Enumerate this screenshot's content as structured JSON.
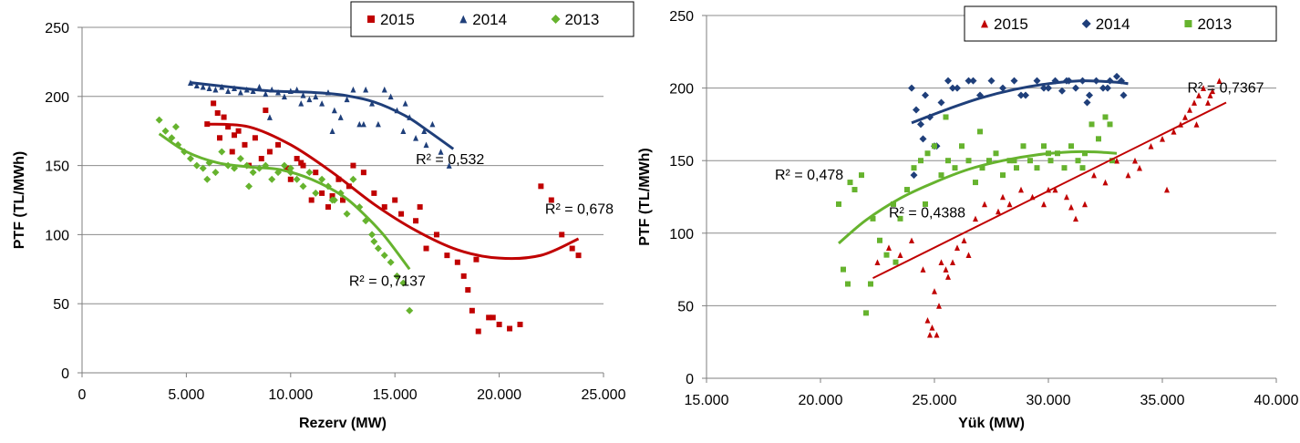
{
  "colors": {
    "2015": "#C00000",
    "2014": "#1F3F7A",
    "2013": "#66B32E",
    "grid": "#8C8C8C",
    "text": "#000000"
  },
  "chart_data": [
    {
      "type": "scatter",
      "xlabel": "Rezerv (MW)",
      "ylabel": "PTF (TL/MWh)",
      "xlim": [
        0,
        25000
      ],
      "ylim": [
        0,
        250
      ],
      "xticks": [
        0,
        5000,
        10000,
        15000,
        20000,
        25000
      ],
      "xtick_labels": [
        "0",
        "5.000",
        "10.000",
        "15.000",
        "20.000",
        "25.000"
      ],
      "yticks": [
        0,
        50,
        100,
        150,
        200,
        250
      ],
      "ytick_labels": [
        "0",
        "50",
        "100",
        "150",
        "200",
        "250"
      ],
      "grid": true,
      "legend_position": "top-right",
      "series": [
        {
          "name": "2015",
          "marker": "square",
          "x": [
            6000,
            6300,
            6600,
            6800,
            7000,
            7200,
            7500,
            7800,
            8000,
            8300,
            8600,
            9000,
            9400,
            9800,
            10000,
            10300,
            10600,
            11000,
            11200,
            11500,
            11800,
            12000,
            12300,
            12500,
            13000,
            13500,
            14000,
            14500,
            15000,
            15300,
            16000,
            16500,
            17000,
            17500,
            18000,
            18300,
            18500,
            18700,
            19000,
            19500,
            20000,
            20500,
            22000,
            23000,
            23800,
            6500,
            7300,
            8800,
            10500,
            12800,
            16200,
            18900,
            19700,
            21000,
            22500,
            23500
          ],
          "y": [
            180,
            195,
            170,
            185,
            178,
            160,
            175,
            165,
            150,
            170,
            155,
            160,
            165,
            148,
            140,
            155,
            150,
            125,
            145,
            130,
            120,
            128,
            140,
            125,
            150,
            145,
            130,
            120,
            125,
            115,
            110,
            90,
            100,
            85,
            80,
            70,
            60,
            45,
            30,
            40,
            35,
            32,
            135,
            100,
            85,
            188,
            172,
            190,
            152,
            135,
            120,
            82,
            40,
            35,
            125,
            90
          ],
          "trend": {
            "type": "poly3",
            "x_range": [
              6000,
              23800
            ],
            "r2_label": "R² = 0,678",
            "points": [
              [
                6000,
                180
              ],
              [
                8000,
                178
              ],
              [
                10000,
                165
              ],
              [
                12000,
                145
              ],
              [
                14000,
                122
              ],
              [
                16000,
                103
              ],
              [
                18000,
                89
              ],
              [
                20000,
                83
              ],
              [
                22000,
                85
              ],
              [
                23800,
                97
              ]
            ]
          }
        },
        {
          "name": "2014",
          "marker": "triangle",
          "x": [
            5200,
            5500,
            5800,
            6100,
            6400,
            6700,
            7000,
            7300,
            7600,
            7900,
            8200,
            8500,
            8800,
            9100,
            9400,
            9700,
            10000,
            10300,
            10600,
            10900,
            11200,
            11500,
            11800,
            12100,
            12400,
            12700,
            13000,
            13300,
            13600,
            13900,
            14200,
            14500,
            14800,
            15100,
            15400,
            15700,
            16000,
            16400,
            16800,
            17200,
            17600,
            9000,
            10500,
            12000,
            13500,
            15500,
            16500
          ],
          "y": [
            210,
            208,
            207,
            206,
            205,
            207,
            204,
            206,
            203,
            205,
            204,
            207,
            202,
            205,
            203,
            200,
            204,
            205,
            201,
            198,
            200,
            195,
            203,
            190,
            185,
            198,
            205,
            180,
            205,
            195,
            180,
            205,
            200,
            190,
            175,
            185,
            170,
            175,
            180,
            160,
            150,
            185,
            195,
            175,
            180,
            195,
            165
          ],
          "trend": {
            "type": "poly3",
            "x_range": [
              5200,
              17800
            ],
            "r2_label": "R² = 0,532",
            "points": [
              [
                5200,
                210
              ],
              [
                7000,
                207
              ],
              [
                9000,
                204
              ],
              [
                11000,
                203
              ],
              [
                12500,
                201
              ],
              [
                14000,
                196
              ],
              [
                15500,
                186
              ],
              [
                16500,
                176
              ],
              [
                17800,
                162
              ]
            ]
          }
        },
        {
          "name": "2013",
          "marker": "diamond",
          "x": [
            3700,
            4000,
            4300,
            4600,
            4900,
            5200,
            5500,
            5800,
            6100,
            6400,
            6700,
            7000,
            7300,
            7600,
            7900,
            8200,
            8500,
            8800,
            9100,
            9400,
            9700,
            10000,
            10300,
            10600,
            10900,
            11200,
            11500,
            11800,
            12100,
            12400,
            12700,
            13000,
            13300,
            13600,
            13900,
            14200,
            14500,
            14800,
            15100,
            15400,
            15700,
            4500,
            6000,
            8000,
            10000,
            12000,
            14000
          ],
          "y": [
            183,
            175,
            170,
            165,
            160,
            155,
            150,
            148,
            152,
            145,
            160,
            150,
            148,
            155,
            150,
            145,
            148,
            150,
            140,
            145,
            150,
            148,
            140,
            135,
            145,
            130,
            140,
            135,
            125,
            130,
            115,
            140,
            120,
            110,
            100,
            90,
            85,
            80,
            70,
            65,
            45,
            178,
            140,
            135,
            145,
            125,
            95
          ],
          "trend": {
            "type": "poly3",
            "x_range": [
              3700,
              15700
            ],
            "r2_label": "R² = 0,7137",
            "points": [
              [
                3700,
                173
              ],
              [
                5000,
                160
              ],
              [
                6500,
                152
              ],
              [
                8000,
                149
              ],
              [
                9500,
                147
              ],
              [
                11000,
                140
              ],
              [
                12500,
                128
              ],
              [
                13500,
                115
              ],
              [
                14500,
                99
              ],
              [
                15700,
                75
              ]
            ]
          }
        }
      ],
      "annotations": [
        {
          "text": "R² = 0,532",
          "x": 16000,
          "y": 151
        },
        {
          "text": "R² = 0,678",
          "x": 22200,
          "y": 115
        },
        {
          "text": "R² = 0,7137",
          "x": 12800,
          "y": 63
        }
      ]
    },
    {
      "type": "scatter",
      "xlabel": "Yük (MW)",
      "ylabel": "PTF (TL/MWh)",
      "xlim": [
        15000,
        40000
      ],
      "ylim": [
        0,
        250
      ],
      "xticks": [
        15000,
        20000,
        25000,
        30000,
        35000,
        40000
      ],
      "xtick_labels": [
        "15.000",
        "20.000",
        "25.000",
        "30.000",
        "35.000",
        "40.000"
      ],
      "yticks": [
        0,
        50,
        100,
        150,
        200,
        250
      ],
      "ytick_labels": [
        "0",
        "50",
        "100",
        "150",
        "200",
        "250"
      ],
      "grid": true,
      "legend_position": "top-right",
      "series": [
        {
          "name": "2015",
          "marker": "triangle",
          "x": [
            22500,
            23000,
            23500,
            24000,
            24500,
            24700,
            24800,
            25000,
            25200,
            25300,
            25500,
            25800,
            26000,
            26300,
            26800,
            27200,
            27800,
            28300,
            28800,
            29300,
            29800,
            30300,
            30800,
            31200,
            31600,
            32000,
            32500,
            33000,
            33500,
            34000,
            34500,
            35000,
            35500,
            35800,
            36000,
            36200,
            36400,
            36600,
            36800,
            37000,
            37200,
            37500,
            24900,
            25100,
            25600,
            26500,
            28000,
            30000,
            31000,
            33800,
            35200,
            36500,
            37100
          ],
          "y": [
            80,
            90,
            85,
            95,
            75,
            40,
            30,
            60,
            50,
            80,
            75,
            80,
            90,
            95,
            110,
            120,
            115,
            120,
            130,
            125,
            120,
            130,
            125,
            110,
            120,
            140,
            135,
            150,
            140,
            145,
            160,
            165,
            170,
            175,
            180,
            185,
            190,
            195,
            200,
            190,
            198,
            205,
            35,
            30,
            70,
            85,
            125,
            130,
            118,
            150,
            130,
            175,
            195
          ],
          "trend": {
            "type": "linear",
            "x_range": [
              22300,
              37800
            ],
            "r2_label": "R² = 0,7367",
            "points": [
              [
                22300,
                69
              ],
              [
                37800,
                190
              ]
            ]
          }
        },
        {
          "name": "2014",
          "marker": "diamond",
          "x": [
            24000,
            24200,
            24400,
            24600,
            24800,
            25000,
            25300,
            25600,
            26000,
            26500,
            27000,
            27500,
            28000,
            28500,
            29000,
            29500,
            30000,
            30300,
            30600,
            30900,
            31200,
            31500,
            31800,
            32100,
            32400,
            32700,
            33000,
            33300,
            24100,
            24500,
            25100,
            25800,
            26700,
            28800,
            29800,
            30800,
            31700,
            32600,
            33200
          ],
          "y": [
            200,
            185,
            175,
            195,
            180,
            160,
            190,
            205,
            200,
            205,
            195,
            205,
            200,
            205,
            195,
            205,
            200,
            205,
            198,
            205,
            200,
            205,
            195,
            205,
            200,
            205,
            208,
            195,
            140,
            165,
            160,
            200,
            205,
            195,
            200,
            205,
            190,
            200,
            205
          ],
          "trend": {
            "type": "poly2",
            "x_range": [
              24000,
              33500
            ],
            "r2_label": "",
            "points": [
              [
                24000,
                176
              ],
              [
                25500,
                185
              ],
              [
                27000,
                193
              ],
              [
                28500,
                199
              ],
              [
                30000,
                203
              ],
              [
                31500,
                205
              ],
              [
                33000,
                204
              ],
              [
                33500,
                203
              ]
            ]
          }
        },
        {
          "name": "2013",
          "marker": "square",
          "x": [
            20800,
            21000,
            21200,
            21500,
            21800,
            22000,
            22300,
            22600,
            22900,
            23200,
            23500,
            23800,
            24100,
            24400,
            24700,
            25000,
            25300,
            25600,
            25900,
            26200,
            26500,
            26800,
            27100,
            27400,
            27700,
            28000,
            28300,
            28600,
            28900,
            29200,
            29500,
            29800,
            30100,
            30400,
            30700,
            31000,
            31300,
            31600,
            31900,
            32200,
            32500,
            32800,
            21300,
            22200,
            23300,
            24600,
            25500,
            27000,
            28500,
            30000,
            31500,
            32700
          ],
          "y": [
            120,
            75,
            65,
            130,
            140,
            45,
            110,
            95,
            85,
            120,
            110,
            130,
            145,
            150,
            155,
            160,
            140,
            150,
            145,
            160,
            150,
            135,
            145,
            150,
            155,
            140,
            150,
            145,
            160,
            150,
            145,
            160,
            150,
            155,
            145,
            160,
            150,
            155,
            175,
            165,
            180,
            150,
            135,
            65,
            80,
            120,
            180,
            170,
            150,
            155,
            145,
            175
          ],
          "trend": {
            "type": "poly2",
            "x_range": [
              20800,
              33000
            ],
            "r2_label": "R² = 0,478",
            "points": [
              [
                20800,
                93
              ],
              [
                22000,
                109
              ],
              [
                23500,
                124
              ],
              [
                25000,
                135
              ],
              [
                26500,
                144
              ],
              [
                28000,
                150
              ],
              [
                29500,
                154
              ],
              [
                31000,
                156
              ],
              [
                32000,
                156
              ],
              [
                33000,
                155
              ]
            ]
          }
        }
      ],
      "annotations": [
        {
          "text": "R² = 0,478",
          "x": 18000,
          "y": 137
        },
        {
          "text": "R² = 0,4388",
          "x": 23000,
          "y": 111
        },
        {
          "text": "R² = 0,7367",
          "x": 36100,
          "y": 197
        }
      ]
    }
  ]
}
